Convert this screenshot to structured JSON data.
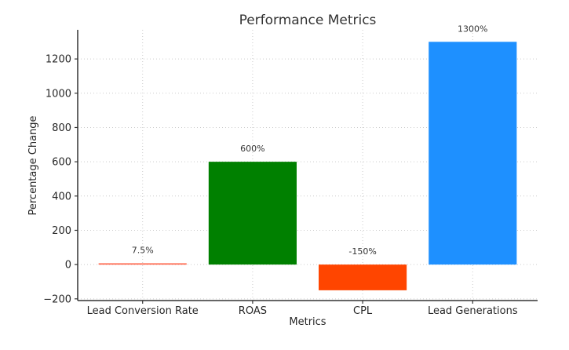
{
  "chart_data": {
    "type": "bar",
    "title": "Performance Metrics",
    "xlabel": "Metrics",
    "ylabel": "Percentage Change",
    "categories": [
      "Lead Conversion Rate",
      "ROAS",
      "CPL",
      "Lead Generations"
    ],
    "values": [
      7.5,
      600,
      -150,
      1300
    ],
    "bar_labels": [
      "7.5%",
      "600%",
      "-150%",
      "1300%"
    ],
    "colors": [
      "#ff6347",
      "#008000",
      "#ff4500",
      "#1e90ff"
    ],
    "yticks": [
      -200,
      0,
      200,
      400,
      600,
      800,
      1000,
      1200
    ],
    "ytick_labels": [
      "−200",
      "0",
      "200",
      "400",
      "600",
      "800",
      "1000",
      "1200"
    ],
    "ylim": [
      -210,
      1370
    ],
    "bar_width_fraction": 0.8,
    "grid": true,
    "grid_style": "dotted",
    "legend": "none",
    "background_color": "#ffffff",
    "grid_color": "#cccccc",
    "axis_color": "#333333",
    "text_color": "#262626"
  }
}
